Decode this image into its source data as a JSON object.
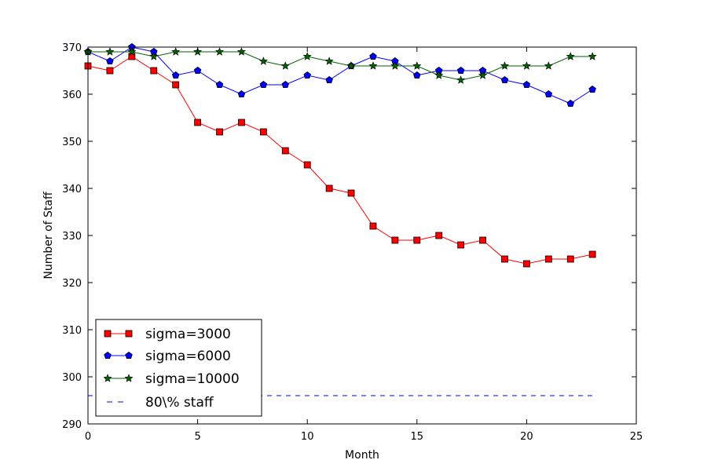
{
  "chart_data": {
    "type": "line",
    "title": "",
    "xlabel": "Month",
    "ylabel": "Number of Staff",
    "xlim": [
      0,
      25
    ],
    "ylim": [
      290,
      370
    ],
    "x_ticks": [
      0,
      5,
      10,
      15,
      20,
      25
    ],
    "y_ticks": [
      290,
      300,
      310,
      320,
      330,
      340,
      350,
      360,
      370
    ],
    "grid": false,
    "legend_position": "lower-left",
    "x": [
      0,
      1,
      2,
      3,
      4,
      5,
      6,
      7,
      8,
      9,
      10,
      11,
      12,
      13,
      14,
      15,
      16,
      17,
      18,
      19,
      20,
      21,
      22,
      23
    ],
    "series": [
      {
        "name": "sigma=3000",
        "color": "#ff0000",
        "marker": "square",
        "line": "solid",
        "values": [
          366,
          365,
          368,
          365,
          362,
          354,
          352,
          354,
          352,
          348,
          345,
          340,
          339,
          332,
          329,
          329,
          330,
          328,
          329,
          325,
          324,
          325,
          325,
          326
        ]
      },
      {
        "name": "sigma=6000",
        "color": "#0000ff",
        "marker": "pentagon",
        "line": "solid",
        "values": [
          369,
          367,
          370,
          369,
          364,
          365,
          362,
          360,
          362,
          362,
          364,
          363,
          366,
          368,
          367,
          364,
          365,
          365,
          365,
          363,
          362,
          360,
          358,
          361
        ]
      },
      {
        "name": "sigma=10000",
        "color": "#006400",
        "marker": "star",
        "line": "solid",
        "values": [
          369,
          369,
          369,
          368,
          369,
          369,
          369,
          369,
          367,
          366,
          368,
          367,
          366,
          366,
          366,
          366,
          364,
          363,
          364,
          366,
          366,
          366,
          368,
          368
        ]
      },
      {
        "name": "80\\%  staff",
        "color": "#0000ff",
        "marker": "none",
        "line": "dashed",
        "values": [
          296,
          296,
          296,
          296,
          296,
          296,
          296,
          296,
          296,
          296,
          296,
          296,
          296,
          296,
          296,
          296,
          296,
          296,
          296,
          296,
          296,
          296,
          296,
          296
        ]
      }
    ]
  }
}
